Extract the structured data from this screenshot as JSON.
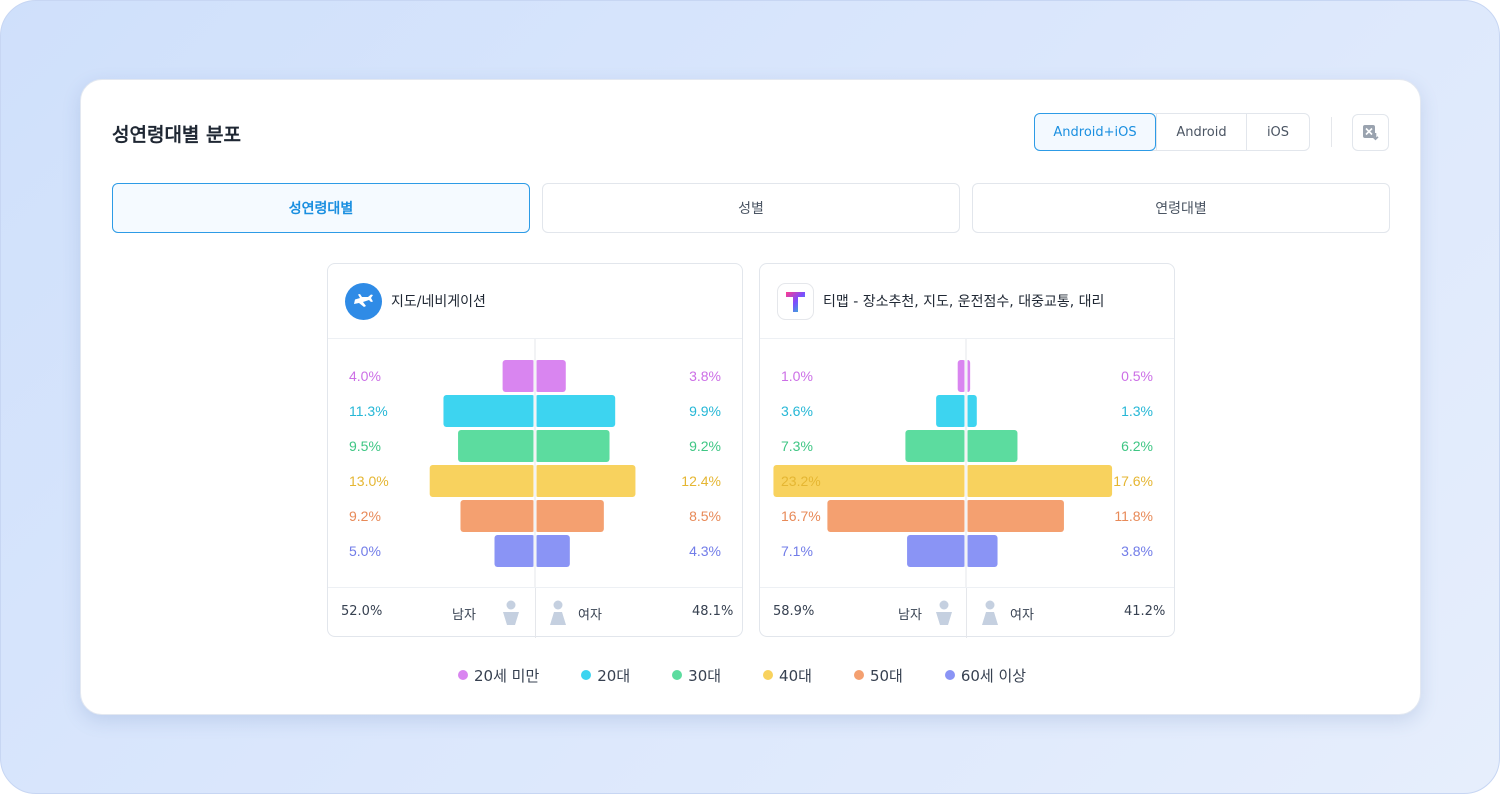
{
  "card": {
    "title": "성연령대별 분포",
    "platforms": [
      "Android+iOS",
      "Android",
      "iOS"
    ],
    "active_platform": 0,
    "excel_icon": "excel-download-icon",
    "tabs": [
      "성연령대별",
      "성별",
      "연령대별"
    ],
    "active_tab": 0
  },
  "colors": {
    "accent": "#1a8fe0",
    "groups": [
      "#d985f0",
      "#3dd4f0",
      "#5cdc9f",
      "#f8d25e",
      "#f4a070",
      "#8a94f5"
    ],
    "labels": [
      "#cc6fe6",
      "#26b7d6",
      "#3fc684",
      "#e5b632",
      "#e88a58",
      "#717ce8"
    ]
  },
  "legend": [
    "20세 미만",
    "20대",
    "30대",
    "40대",
    "50대",
    "60세 이상"
  ],
  "chart_data": [
    {
      "type": "bar",
      "subtype": "population-pyramid",
      "title": "지도/네비게이션",
      "icon": "airplane-icon",
      "categories": [
        "20세 미만",
        "20대",
        "30대",
        "40대",
        "50대",
        "60세 이상"
      ],
      "series": [
        {
          "name": "남자",
          "values": [
            4.0,
            11.3,
            9.5,
            13.0,
            9.2,
            5.0
          ],
          "labels": [
            "4.0%",
            "11.3%",
            "9.5%",
            "13.0%",
            "9.2%",
            "5.0%"
          ]
        },
        {
          "name": "여자",
          "values": [
            3.8,
            9.9,
            9.2,
            12.4,
            8.5,
            4.3
          ],
          "labels": [
            "3.8%",
            "9.9%",
            "9.2%",
            "12.4%",
            "8.5%",
            "4.3%"
          ]
        }
      ],
      "totals": {
        "male": "52.0%",
        "male_label": "남자",
        "female": "48.1%",
        "female_label": "여자"
      }
    },
    {
      "type": "bar",
      "subtype": "population-pyramid",
      "title": "티맵 - 장소추천, 지도, 운전점수, 대중교통, 대리",
      "icon": "tmap-logo-icon",
      "categories": [
        "20세 미만",
        "20대",
        "30대",
        "40대",
        "50대",
        "60세 이상"
      ],
      "series": [
        {
          "name": "남자",
          "values": [
            1.0,
            3.6,
            7.3,
            23.2,
            16.7,
            7.1
          ],
          "labels": [
            "1.0%",
            "3.6%",
            "7.3%",
            "23.2%",
            "16.7%",
            "7.1%"
          ]
        },
        {
          "name": "여자",
          "values": [
            0.5,
            1.3,
            6.2,
            17.6,
            11.8,
            3.8
          ],
          "labels": [
            "0.5%",
            "1.3%",
            "6.2%",
            "17.6%",
            "11.8%",
            "3.8%"
          ]
        }
      ],
      "totals": {
        "male": "58.9%",
        "male_label": "남자",
        "female": "41.2%",
        "female_label": "여자"
      }
    }
  ]
}
